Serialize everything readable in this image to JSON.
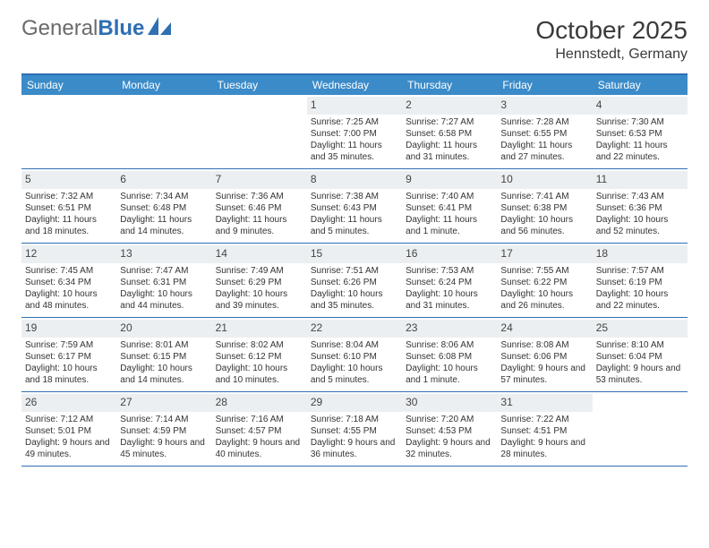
{
  "brand": {
    "first": "General",
    "second": "Blue"
  },
  "title": "October 2025",
  "location": "Hennstedt, Germany",
  "colors": {
    "header_bg": "#3b8bc9",
    "border": "#2f6fb2",
    "daynum_bg": "#eceff1",
    "text": "#333333",
    "brand_gray": "#6a6a6a",
    "brand_blue": "#2f6fb2",
    "page_bg": "#ffffff"
  },
  "day_headers": [
    "Sunday",
    "Monday",
    "Tuesday",
    "Wednesday",
    "Thursday",
    "Friday",
    "Saturday"
  ],
  "weeks": [
    [
      {
        "num": "",
        "sunrise": "",
        "sunset": "",
        "daylight": ""
      },
      {
        "num": "",
        "sunrise": "",
        "sunset": "",
        "daylight": ""
      },
      {
        "num": "",
        "sunrise": "",
        "sunset": "",
        "daylight": ""
      },
      {
        "num": "1",
        "sunrise": "Sunrise: 7:25 AM",
        "sunset": "Sunset: 7:00 PM",
        "daylight": "Daylight: 11 hours and 35 minutes."
      },
      {
        "num": "2",
        "sunrise": "Sunrise: 7:27 AM",
        "sunset": "Sunset: 6:58 PM",
        "daylight": "Daylight: 11 hours and 31 minutes."
      },
      {
        "num": "3",
        "sunrise": "Sunrise: 7:28 AM",
        "sunset": "Sunset: 6:55 PM",
        "daylight": "Daylight: 11 hours and 27 minutes."
      },
      {
        "num": "4",
        "sunrise": "Sunrise: 7:30 AM",
        "sunset": "Sunset: 6:53 PM",
        "daylight": "Daylight: 11 hours and 22 minutes."
      }
    ],
    [
      {
        "num": "5",
        "sunrise": "Sunrise: 7:32 AM",
        "sunset": "Sunset: 6:51 PM",
        "daylight": "Daylight: 11 hours and 18 minutes."
      },
      {
        "num": "6",
        "sunrise": "Sunrise: 7:34 AM",
        "sunset": "Sunset: 6:48 PM",
        "daylight": "Daylight: 11 hours and 14 minutes."
      },
      {
        "num": "7",
        "sunrise": "Sunrise: 7:36 AM",
        "sunset": "Sunset: 6:46 PM",
        "daylight": "Daylight: 11 hours and 9 minutes."
      },
      {
        "num": "8",
        "sunrise": "Sunrise: 7:38 AM",
        "sunset": "Sunset: 6:43 PM",
        "daylight": "Daylight: 11 hours and 5 minutes."
      },
      {
        "num": "9",
        "sunrise": "Sunrise: 7:40 AM",
        "sunset": "Sunset: 6:41 PM",
        "daylight": "Daylight: 11 hours and 1 minute."
      },
      {
        "num": "10",
        "sunrise": "Sunrise: 7:41 AM",
        "sunset": "Sunset: 6:38 PM",
        "daylight": "Daylight: 10 hours and 56 minutes."
      },
      {
        "num": "11",
        "sunrise": "Sunrise: 7:43 AM",
        "sunset": "Sunset: 6:36 PM",
        "daylight": "Daylight: 10 hours and 52 minutes."
      }
    ],
    [
      {
        "num": "12",
        "sunrise": "Sunrise: 7:45 AM",
        "sunset": "Sunset: 6:34 PM",
        "daylight": "Daylight: 10 hours and 48 minutes."
      },
      {
        "num": "13",
        "sunrise": "Sunrise: 7:47 AM",
        "sunset": "Sunset: 6:31 PM",
        "daylight": "Daylight: 10 hours and 44 minutes."
      },
      {
        "num": "14",
        "sunrise": "Sunrise: 7:49 AM",
        "sunset": "Sunset: 6:29 PM",
        "daylight": "Daylight: 10 hours and 39 minutes."
      },
      {
        "num": "15",
        "sunrise": "Sunrise: 7:51 AM",
        "sunset": "Sunset: 6:26 PM",
        "daylight": "Daylight: 10 hours and 35 minutes."
      },
      {
        "num": "16",
        "sunrise": "Sunrise: 7:53 AM",
        "sunset": "Sunset: 6:24 PM",
        "daylight": "Daylight: 10 hours and 31 minutes."
      },
      {
        "num": "17",
        "sunrise": "Sunrise: 7:55 AM",
        "sunset": "Sunset: 6:22 PM",
        "daylight": "Daylight: 10 hours and 26 minutes."
      },
      {
        "num": "18",
        "sunrise": "Sunrise: 7:57 AM",
        "sunset": "Sunset: 6:19 PM",
        "daylight": "Daylight: 10 hours and 22 minutes."
      }
    ],
    [
      {
        "num": "19",
        "sunrise": "Sunrise: 7:59 AM",
        "sunset": "Sunset: 6:17 PM",
        "daylight": "Daylight: 10 hours and 18 minutes."
      },
      {
        "num": "20",
        "sunrise": "Sunrise: 8:01 AM",
        "sunset": "Sunset: 6:15 PM",
        "daylight": "Daylight: 10 hours and 14 minutes."
      },
      {
        "num": "21",
        "sunrise": "Sunrise: 8:02 AM",
        "sunset": "Sunset: 6:12 PM",
        "daylight": "Daylight: 10 hours and 10 minutes."
      },
      {
        "num": "22",
        "sunrise": "Sunrise: 8:04 AM",
        "sunset": "Sunset: 6:10 PM",
        "daylight": "Daylight: 10 hours and 5 minutes."
      },
      {
        "num": "23",
        "sunrise": "Sunrise: 8:06 AM",
        "sunset": "Sunset: 6:08 PM",
        "daylight": "Daylight: 10 hours and 1 minute."
      },
      {
        "num": "24",
        "sunrise": "Sunrise: 8:08 AM",
        "sunset": "Sunset: 6:06 PM",
        "daylight": "Daylight: 9 hours and 57 minutes."
      },
      {
        "num": "25",
        "sunrise": "Sunrise: 8:10 AM",
        "sunset": "Sunset: 6:04 PM",
        "daylight": "Daylight: 9 hours and 53 minutes."
      }
    ],
    [
      {
        "num": "26",
        "sunrise": "Sunrise: 7:12 AM",
        "sunset": "Sunset: 5:01 PM",
        "daylight": "Daylight: 9 hours and 49 minutes."
      },
      {
        "num": "27",
        "sunrise": "Sunrise: 7:14 AM",
        "sunset": "Sunset: 4:59 PM",
        "daylight": "Daylight: 9 hours and 45 minutes."
      },
      {
        "num": "28",
        "sunrise": "Sunrise: 7:16 AM",
        "sunset": "Sunset: 4:57 PM",
        "daylight": "Daylight: 9 hours and 40 minutes."
      },
      {
        "num": "29",
        "sunrise": "Sunrise: 7:18 AM",
        "sunset": "Sunset: 4:55 PM",
        "daylight": "Daylight: 9 hours and 36 minutes."
      },
      {
        "num": "30",
        "sunrise": "Sunrise: 7:20 AM",
        "sunset": "Sunset: 4:53 PM",
        "daylight": "Daylight: 9 hours and 32 minutes."
      },
      {
        "num": "31",
        "sunrise": "Sunrise: 7:22 AM",
        "sunset": "Sunset: 4:51 PM",
        "daylight": "Daylight: 9 hours and 28 minutes."
      },
      {
        "num": "",
        "sunrise": "",
        "sunset": "",
        "daylight": ""
      }
    ]
  ]
}
